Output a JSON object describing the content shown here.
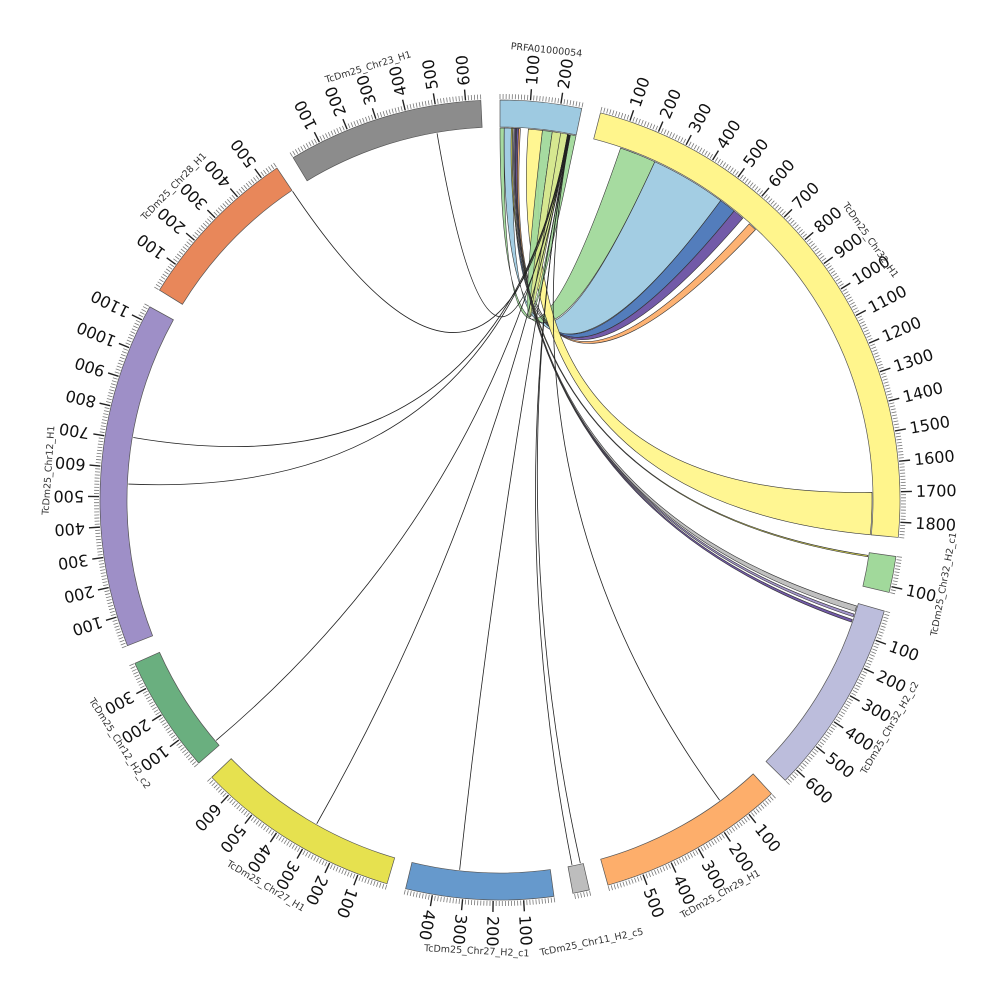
{
  "diagram": {
    "type": "circos",
    "segments": [
      {
        "name": "PRFA01000054",
        "length": 270,
        "color": "#9ecae1",
        "ticks": [
          100,
          200
        ]
      },
      {
        "name": "TcDm25_Chr32_H1",
        "length": 1850,
        "color": "#fff58c",
        "ticks": [
          100,
          200,
          300,
          400,
          500,
          600,
          700,
          800,
          900,
          1000,
          1100,
          1200,
          1300,
          1400,
          1500,
          1600,
          1700,
          1800
        ]
      },
      {
        "name": "TcDm25_Chr32_H2_c1",
        "length": 120,
        "color": "#a1d99b",
        "ticks": [
          100
        ]
      },
      {
        "name": "TcDm25_Chr32_H2_c2",
        "length": 650,
        "color": "#bcbddc",
        "ticks": [
          100,
          200,
          300,
          400,
          500,
          600
        ]
      },
      {
        "name": "TcDm25_Chr29_H1",
        "length": 620,
        "color": "#fdae6b",
        "ticks": [
          100,
          200,
          300,
          400,
          500
        ]
      },
      {
        "name": "TcDm25_Chr11_H2_c5",
        "length": 55,
        "color": "#bdbdbd",
        "ticks": []
      },
      {
        "name": "TcDm25_Chr27_H2_c1",
        "length": 490,
        "color": "#6699cc",
        "ticks": [
          100,
          200,
          300,
          400
        ]
      },
      {
        "name": "TcDm25_Chr27_H1",
        "length": 680,
        "color": "#e6e14f",
        "ticks": [
          100,
          200,
          300,
          400,
          500,
          600
        ]
      },
      {
        "name": "TcDm25_Chr12_H2_c2",
        "length": 390,
        "color": "#6aaf7f",
        "ticks": [
          100,
          200,
          300
        ]
      },
      {
        "name": "TcDm25_Chr12_H1",
        "length": 1150,
        "color": "#9e8fc7",
        "ticks": [
          100,
          200,
          300,
          400,
          500,
          600,
          700,
          800,
          900,
          1000,
          1100
        ]
      },
      {
        "name": "TcDm25_Chr28_H1",
        "length": 560,
        "color": "#e8875a",
        "ticks": [
          100,
          200,
          300,
          400,
          500
        ]
      },
      {
        "name": "TcDm25_Chr23_H1",
        "length": 650,
        "color": "#8c8c8c",
        "ticks": [
          100,
          200,
          300,
          400,
          500,
          600
        ]
      }
    ],
    "links": [
      {
        "from": "PRFA01000054",
        "from_start": 0,
        "from_end": 15,
        "to": "TcDm25_Chr32_H1",
        "to_start": 100,
        "to_end": 230,
        "color": "#a1d99b"
      },
      {
        "from": "PRFA01000054",
        "from_start": 15,
        "from_end": 50,
        "to": "TcDm25_Chr32_H1",
        "to_start": 230,
        "to_end": 500,
        "color": "#9ecae1"
      },
      {
        "from": "PRFA01000054",
        "from_start": 50,
        "from_end": 60,
        "to": "TcDm25_Chr32_H1",
        "to_start": 500,
        "to_end": 560,
        "color": "#4a76b8"
      },
      {
        "from": "PRFA01000054",
        "from_start": 60,
        "from_end": 66,
        "to": "TcDm25_Chr32_H1",
        "to_start": 560,
        "to_end": 600,
        "color": "#6a51a3"
      },
      {
        "from": "PRFA01000054",
        "from_start": 66,
        "from_end": 72,
        "to": "TcDm25_Chr32_H1",
        "to_start": 630,
        "to_end": 660,
        "color": "#fdae6b"
      },
      {
        "from": "PRFA01000054",
        "from_start": 100,
        "from_end": 150,
        "to": "TcDm25_Chr32_H1",
        "to_start": 1700,
        "to_end": 1850,
        "color": "#fff58c"
      },
      {
        "from": "PRFA01000054",
        "from_start": 150,
        "from_end": 185,
        "to": "PRFA01000054",
        "to_start": 250,
        "to_end": 270,
        "color": "#a1d99b"
      },
      {
        "from": "PRFA01000054",
        "from_start": 185,
        "from_end": 215,
        "to": "PRFA01000054",
        "to_start": 215,
        "to_end": 240,
        "color": "#d4e68a"
      },
      {
        "from": "PRFA01000054",
        "from_start": 40,
        "from_end": 45,
        "to": "TcDm25_Chr32_H2_c1",
        "to_start": 10,
        "to_end": 15,
        "color": "#e6e14f"
      },
      {
        "from": "PRFA01000054",
        "from_start": 45,
        "from_end": 50,
        "to": "TcDm25_Chr32_H2_c2",
        "to_start": 10,
        "to_end": 30,
        "color": "#bdbdbd"
      },
      {
        "from": "PRFA01000054",
        "from_start": 50,
        "from_end": 54,
        "to": "TcDm25_Chr32_H2_c2",
        "to_start": 40,
        "to_end": 50,
        "color": "#9e8fc7"
      },
      {
        "from": "PRFA01000054",
        "from_start": 54,
        "from_end": 57,
        "to": "TcDm25_Chr32_H2_c2",
        "to_start": 60,
        "to_end": 70,
        "color": "#6a51a3"
      },
      {
        "from": "PRFA01000054",
        "from_start": 240,
        "from_end": 241,
        "to": "TcDm25_Chr23_H1",
        "to_start": 490,
        "to_end": 492,
        "color": "#222222"
      },
      {
        "from": "PRFA01000054",
        "from_start": 241,
        "from_end": 242,
        "to": "TcDm25_Chr28_H1",
        "to_start": 560,
        "to_end": 561,
        "color": "#222222"
      },
      {
        "from": "PRFA01000054",
        "from_start": 242,
        "from_end": 243,
        "to": "TcDm25_Chr12_H1",
        "to_start": 710,
        "to_end": 711,
        "color": "#222222"
      },
      {
        "from": "PRFA01000054",
        "from_start": 243,
        "from_end": 244,
        "to": "TcDm25_Chr12_H1",
        "to_start": 545,
        "to_end": 546,
        "color": "#222222"
      },
      {
        "from": "PRFA01000054",
        "from_start": 244,
        "from_end": 245,
        "to": "TcDm25_Chr12_H2_c2",
        "to_start": 20,
        "to_end": 21,
        "color": "#222222"
      },
      {
        "from": "PRFA01000054",
        "from_start": 245,
        "from_end": 246,
        "to": "TcDm25_Chr27_H1",
        "to_start": 300,
        "to_end": 301,
        "color": "#222222"
      },
      {
        "from": "PRFA01000054",
        "from_start": 246,
        "from_end": 247,
        "to": "TcDm25_Chr27_H2_c1",
        "to_start": 320,
        "to_end": 321,
        "color": "#222222"
      },
      {
        "from": "PRFA01000054",
        "from_start": 247,
        "from_end": 248,
        "to": "TcDm25_Chr11_H2_c5",
        "to_start": 10,
        "to_end": 11,
        "color": "#222222"
      },
      {
        "from": "PRFA01000054",
        "from_start": 248,
        "from_end": 249,
        "to": "TcDm25_Chr11_H2_c5",
        "to_start": 40,
        "to_end": 41,
        "color": "#222222"
      },
      {
        "from": "PRFA01000054",
        "from_start": 249,
        "from_end": 250,
        "to": "TcDm25_Chr29_H1",
        "to_start": 150,
        "to_end": 151,
        "color": "#222222"
      }
    ]
  }
}
